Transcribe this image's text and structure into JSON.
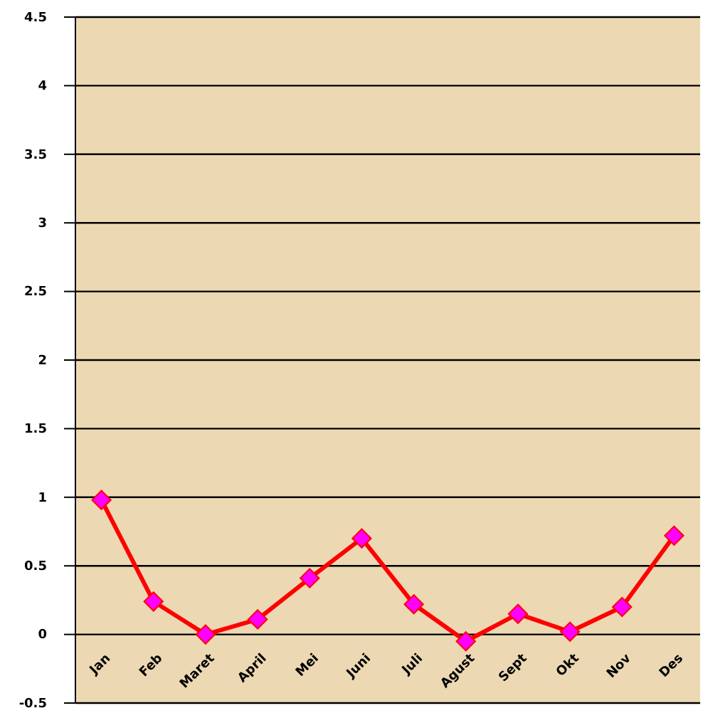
{
  "chart_data": {
    "type": "line",
    "categories": [
      "Jan",
      "Feb",
      "Maret",
      "April",
      "Mei",
      "Juni",
      "Juli",
      "Agust",
      "Sept",
      "Okt",
      "Nov",
      "Des"
    ],
    "series": [
      {
        "color": "#ff0000",
        "values": [
          0.98,
          0.24,
          0.0,
          0.11,
          0.41,
          0.7,
          0.22,
          -0.05,
          0.15,
          0.02,
          0.2,
          0.72
        ]
      }
    ],
    "ylim": [
      -0.5,
      4.5
    ],
    "yticks": [
      -0.5,
      0,
      0.5,
      1,
      1.5,
      2,
      2.5,
      3,
      3.5,
      4,
      4.5
    ],
    "grid": "y",
    "marker": "diamond",
    "line_style": "solid"
  }
}
